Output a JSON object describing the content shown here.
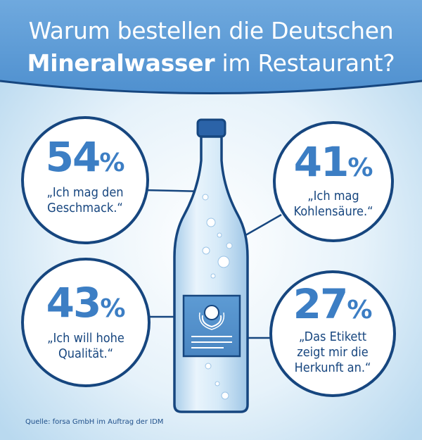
{
  "title": {
    "line1": "Warum bestellen die Deutschen",
    "line2_bold": "Mineralwasser",
    "line2_rest": " im Restaurant?"
  },
  "chart_data": {
    "type": "bubble-infographic",
    "title": "Warum bestellen die Deutschen Mineralwasser im Restaurant?",
    "unit": "%",
    "items": [
      {
        "value": 54,
        "label": "„Ich mag den Geschmack.“",
        "lines": [
          "„Ich mag den",
          "Geschmack.“"
        ]
      },
      {
        "value": 41,
        "label": "„Ich mag Kohlensäure.“",
        "lines": [
          "„Ich mag",
          "Kohlensäure.“"
        ]
      },
      {
        "value": 43,
        "label": "„Ich will hohe Qualität.“",
        "lines": [
          "„Ich will hohe",
          "Qualität.“"
        ]
      },
      {
        "value": 27,
        "label": "„Das Etikett zeigt mir die Herkunft an.“",
        "lines": [
          "„Das Etikett",
          "zeigt mir die",
          "Herkunft an.“"
        ]
      }
    ]
  },
  "source": "Quelle: forsa GmbH im Auftrag der IDM",
  "colors": {
    "navy": "#16467f",
    "accent_blue": "#3c7ec4",
    "header_blue": "#5a9ad6",
    "background": "#d7ebf7",
    "bottle": "#cfe6f6"
  },
  "icons": [
    "water-bottle-icon",
    "label-emblem-icon"
  ]
}
